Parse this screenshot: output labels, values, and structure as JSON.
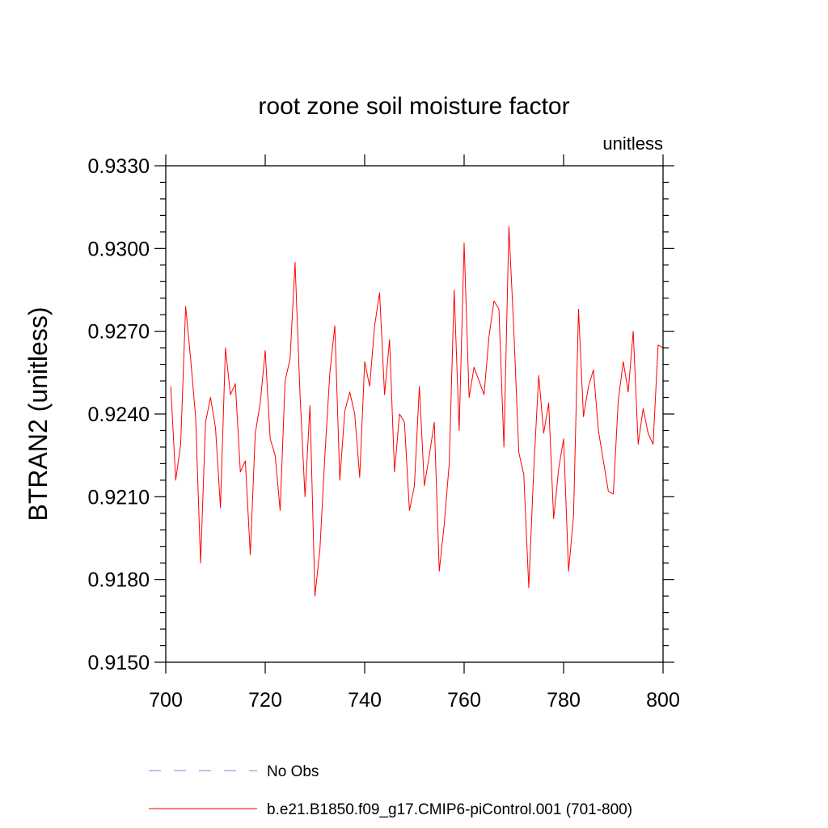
{
  "chart_data": {
    "type": "line",
    "title": "root zone soil moisture factor",
    "units_label": "unitless",
    "ylabel": "BTRAN2  (unitless)",
    "xlabel": "",
    "xlim": [
      700,
      800
    ],
    "ylim": [
      0.915,
      0.933
    ],
    "x_ticks": [
      700,
      720,
      740,
      760,
      780,
      800
    ],
    "x_tick_labels": [
      "700",
      "720",
      "740",
      "760",
      "780",
      "800"
    ],
    "y_ticks": [
      0.915,
      0.918,
      0.921,
      0.924,
      0.927,
      0.93,
      0.933
    ],
    "y_tick_labels": [
      "0.9150",
      "0.9180",
      "0.9210",
      "0.9240",
      "0.9270",
      "0.9300",
      "0.9330"
    ],
    "legend": [
      {
        "label": "No Obs",
        "style": "dashed",
        "color": "#8a82c8"
      },
      {
        "label": "b.e21.B1850.f09_g17.CMIP6-piControl.001 (701-800)",
        "style": "solid",
        "color": "#ff0000"
      }
    ],
    "series": [
      {
        "name": "b.e21.B1850.f09_g17.CMIP6-piControl.001 (701-800)",
        "color": "#ff0000",
        "x_start": 701,
        "x_step": 1,
        "values": [
          0.925,
          0.9216,
          0.9229,
          0.9279,
          0.926,
          0.9239,
          0.9186,
          0.9237,
          0.9246,
          0.9235,
          0.9206,
          0.9264,
          0.9247,
          0.9251,
          0.9219,
          0.9223,
          0.9189,
          0.9233,
          0.9244,
          0.9263,
          0.9231,
          0.9225,
          0.9205,
          0.9252,
          0.926,
          0.9295,
          0.9247,
          0.921,
          0.9243,
          0.9174,
          0.9191,
          0.9225,
          0.9255,
          0.9272,
          0.9216,
          0.9241,
          0.9248,
          0.924,
          0.9217,
          0.9259,
          0.925,
          0.9272,
          0.9284,
          0.9247,
          0.9267,
          0.9219,
          0.924,
          0.9237,
          0.9205,
          0.9214,
          0.925,
          0.9214,
          0.9225,
          0.9237,
          0.9183,
          0.92,
          0.9222,
          0.9285,
          0.9234,
          0.9302,
          0.9246,
          0.9257,
          0.9252,
          0.9247,
          0.9268,
          0.9281,
          0.9278,
          0.9228,
          0.9308,
          0.927,
          0.9226,
          0.9218,
          0.9177,
          0.922,
          0.9254,
          0.9233,
          0.9244,
          0.9202,
          0.922,
          0.9231,
          0.9183,
          0.9203,
          0.9278,
          0.9239,
          0.925,
          0.9256,
          0.9234,
          0.9223,
          0.9212,
          0.9211,
          0.9245,
          0.9259,
          0.9248,
          0.927,
          0.9229,
          0.9242,
          0.9233,
          0.9229,
          0.9265,
          0.9264
        ]
      }
    ]
  }
}
